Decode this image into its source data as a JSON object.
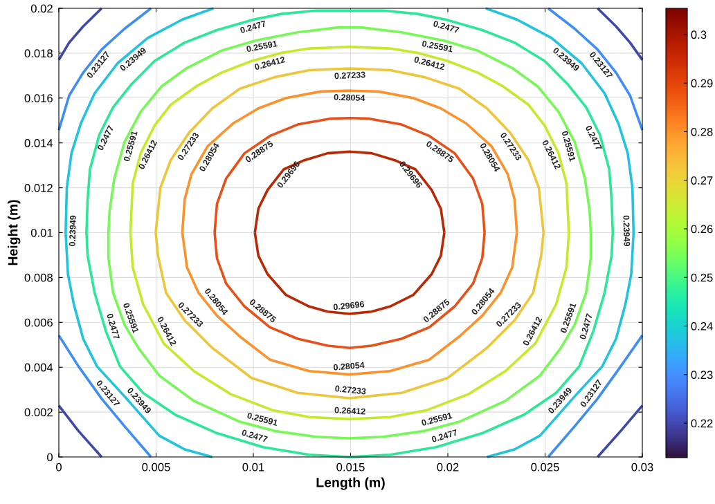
{
  "chart_data": {
    "type": "line",
    "xlabel": "Length (m)",
    "ylabel": "Height (m)",
    "xlim": [
      0,
      0.03
    ],
    "xticks": [
      0,
      0.005,
      0.01,
      0.015,
      0.02,
      0.025,
      0.03
    ],
    "ylim": [
      0,
      0.02
    ],
    "yticks": [
      0,
      0.002,
      0.004,
      0.006,
      0.008,
      0.01,
      0.012,
      0.014,
      0.016,
      0.018,
      0.02
    ],
    "grid": true,
    "legend": false,
    "marker": "none",
    "line_style": "solid",
    "clim": [
      0.2129,
      0.3054
    ],
    "cticks": [
      0.22,
      0.23,
      0.24,
      0.25,
      0.26,
      0.27,
      0.28,
      0.29,
      0.3
    ],
    "series": [
      {
        "name": "0.29696",
        "color": "#b82a06",
        "x": [
          0.01008,
          0.01026,
          0.01073,
          0.01156,
          0.01263,
          0.01382,
          0.01495,
          0.01608,
          0.01727,
          0.01834,
          0.01917,
          0.01964,
          0.01982,
          null,
          0.01008,
          0.01026,
          0.01073,
          0.01168,
          0.01287,
          0.01382,
          0.01495,
          0.01608,
          0.01703,
          0.01822,
          0.01917,
          0.01964,
          0.01982
        ],
        "values": [
          0.01,
          0.01107,
          0.0119,
          0.01282,
          0.01323,
          0.01354,
          0.01361,
          0.01354,
          0.01323,
          0.01282,
          0.0119,
          0.01107,
          0.01,
          null,
          0.01,
          0.00897,
          0.00815,
          0.00722,
          0.00671,
          0.00648,
          0.00638,
          0.00648,
          0.00671,
          0.00722,
          0.00815,
          0.00897,
          0.01
        ]
      },
      {
        "name": "0.28875",
        "color": "#e8501a",
        "x": [
          0.00801,
          0.00813,
          0.0086,
          0.00955,
          0.01085,
          0.01228,
          0.01394,
          0.01495,
          0.01596,
          0.01762,
          0.01905,
          0.02035,
          0.0213,
          0.02177,
          0.02189,
          null,
          0.00801,
          0.00813,
          0.0086,
          0.00955,
          0.01085,
          0.01228,
          0.01382,
          0.01495,
          0.01608,
          0.01762,
          0.01905,
          0.02035,
          0.0213,
          0.02177,
          0.02189
        ],
        "values": [
          0.01,
          0.01128,
          0.01241,
          0.01354,
          0.01431,
          0.01482,
          0.01508,
          0.01511,
          0.01508,
          0.01482,
          0.01431,
          0.01354,
          0.01241,
          0.01128,
          0.01,
          null,
          0.01,
          0.00886,
          0.00773,
          0.00671,
          0.00578,
          0.00527,
          0.00496,
          0.00486,
          0.00496,
          0.00527,
          0.00578,
          0.00671,
          0.00773,
          0.00886,
          0.01
        ]
      },
      {
        "name": "0.28054",
        "color": "#fb922c",
        "x": [
          0.00635,
          0.00647,
          0.00682,
          0.00765,
          0.00896,
          0.01026,
          0.01168,
          0.01346,
          0.01495,
          0.01644,
          0.01822,
          0.01964,
          0.02094,
          0.02225,
          0.02308,
          0.02343,
          0.02355,
          null,
          0.00635,
          0.00659,
          0.00718,
          0.00813,
          0.00931,
          0.01085,
          0.01287,
          0.01495,
          0.01703,
          0.01905,
          0.02059,
          0.02177,
          0.02272,
          0.02331,
          0.02355
        ],
        "values": [
          0.01,
          0.01148,
          0.01261,
          0.01385,
          0.01487,
          0.01554,
          0.016,
          0.01629,
          0.01633,
          0.01629,
          0.016,
          0.01554,
          0.01487,
          0.01385,
          0.01261,
          0.01148,
          0.01,
          null,
          0.01,
          0.00845,
          0.00732,
          0.0063,
          0.00537,
          0.00434,
          0.00383,
          0.00368,
          0.00383,
          0.00434,
          0.00537,
          0.0063,
          0.00732,
          0.00845,
          0.01
        ]
      },
      {
        "name": "0.27233",
        "color": "#eec63c",
        "x": [
          0.00498,
          0.00522,
          0.00575,
          0.0067,
          0.00789,
          0.00931,
          0.01109,
          0.01287,
          0.01495,
          0.01703,
          0.01881,
          0.02059,
          0.02201,
          0.0232,
          0.02415,
          0.02468,
          0.02492,
          null,
          0.00498,
          0.0051,
          0.00551,
          0.00647,
          0.00789,
          0.00991,
          0.01228,
          0.01495,
          0.01762,
          0.01999,
          0.02201,
          0.02343,
          0.02439,
          0.0248,
          0.02492
        ],
        "values": [
          0.01,
          0.012,
          0.01323,
          0.01446,
          0.01554,
          0.01642,
          0.01693,
          0.01724,
          0.01732,
          0.01724,
          0.01693,
          0.01642,
          0.01554,
          0.01446,
          0.01323,
          0.012,
          0.01,
          null,
          0.01,
          0.00897,
          0.00732,
          0.00609,
          0.00486,
          0.00352,
          0.00286,
          0.00262,
          0.00286,
          0.00352,
          0.00486,
          0.00609,
          0.00732,
          0.00897,
          0.01
        ]
      },
      {
        "name": "0.26412",
        "color": "#c4ea2c",
        "x": [
          0.00368,
          0.0038,
          0.00421,
          0.00492,
          0.00575,
          0.00706,
          0.00836,
          0.00991,
          0.01145,
          0.01287,
          0.01495,
          0.01703,
          0.01845,
          0.01999,
          0.02154,
          0.02284,
          0.02415,
          0.02498,
          0.02569,
          0.0261,
          0.02622,
          null,
          0.00368,
          0.0038,
          0.00433,
          0.0054,
          0.00694,
          0.00884,
          0.01097,
          0.01287,
          0.01495,
          0.01703,
          0.01893,
          0.02106,
          0.02296,
          0.0245,
          0.02557,
          0.0261,
          0.02622
        ],
        "values": [
          0.01,
          0.0122,
          0.01354,
          0.01477,
          0.0157,
          0.01652,
          0.01713,
          0.01765,
          0.01801,
          0.01821,
          0.01828,
          0.01821,
          0.01801,
          0.01765,
          0.01713,
          0.01652,
          0.0157,
          0.01477,
          0.01354,
          0.0122,
          0.01,
          null,
          0.01,
          0.00845,
          0.00681,
          0.00506,
          0.00383,
          0.0028,
          0.00209,
          0.00178,
          0.00169,
          0.00178,
          0.00209,
          0.0028,
          0.00383,
          0.00506,
          0.00681,
          0.00845,
          0.01
        ]
      },
      {
        "name": "0.25591",
        "color": "#76f856",
        "x": [
          0.00255,
          0.00261,
          0.00285,
          0.00338,
          0.00421,
          0.00528,
          0.00659,
          0.00836,
          0.01014,
          0.01228,
          0.01429,
          0.01495,
          0.01561,
          0.01762,
          0.01976,
          0.02154,
          0.02331,
          0.02462,
          0.02569,
          0.02652,
          0.02705,
          0.02729,
          0.02735,
          null,
          0.00255,
          0.00255,
          0.00279,
          0.00338,
          0.00409,
          0.00516,
          0.00694,
          0.00931,
          0.01109,
          0.01322,
          0.01495,
          0.01668,
          0.01881,
          0.02059,
          0.02296,
          0.02474,
          0.02581,
          0.02652,
          0.02711,
          0.02735,
          0.02735
        ],
        "values": [
          0.01,
          0.01097,
          0.01241,
          0.01405,
          0.01539,
          0.01652,
          0.01734,
          0.01811,
          0.01857,
          0.01893,
          0.01914,
          0.01914,
          0.01914,
          0.01893,
          0.01857,
          0.01811,
          0.01734,
          0.01652,
          0.01539,
          0.01405,
          0.01241,
          0.01097,
          0.01,
          null,
          0.01,
          0.00886,
          0.00732,
          0.00589,
          0.00486,
          0.00363,
          0.0025,
          0.00157,
          0.00116,
          0.0009,
          0.00083,
          0.0009,
          0.00116,
          0.00157,
          0.0025,
          0.00363,
          0.00486,
          0.00589,
          0.00732,
          0.00886,
          0.01
        ]
      },
      {
        "name": "0.2477",
        "color": "#2ce896",
        "x": [
          0.00142,
          0.00148,
          0.0016,
          0.00208,
          0.00279,
          0.00374,
          0.00492,
          0.00647,
          0.00813,
          0.01002,
          0.01145,
          0.01322,
          0.01495,
          0.01668,
          0.01845,
          0.01988,
          0.02177,
          0.02343,
          0.02498,
          0.02616,
          0.02711,
          0.02782,
          0.0283,
          0.02842,
          0.02848,
          null,
          0.00142,
          0.00148,
          0.00184,
          0.00243,
          0.00314,
          0.00433,
          0.00599,
          0.00813,
          0.0105,
          0.01287,
          0.01495,
          0.01703,
          0.0194,
          0.02177,
          0.02391,
          0.02557,
          0.02676,
          0.02747,
          0.02806,
          0.02842,
          0.02848
        ],
        "values": [
          0.01,
          0.01148,
          0.01282,
          0.01436,
          0.01559,
          0.01662,
          0.01765,
          0.01847,
          0.01903,
          0.0195,
          0.01975,
          0.0199,
          0.0199,
          0.0199,
          0.01975,
          0.0195,
          0.01903,
          0.01847,
          0.01765,
          0.01662,
          0.01559,
          0.01436,
          0.01282,
          0.01148,
          0.01,
          null,
          0.01,
          0.00897,
          0.00732,
          0.00558,
          0.00404,
          0.00286,
          0.00188,
          0.00106,
          0.00044,
          0.0001,
          0.0,
          0.0001,
          0.00044,
          0.00106,
          0.00188,
          0.00286,
          0.00404,
          0.00558,
          0.00732,
          0.00897,
          0.01
        ]
      },
      {
        "name": "0.23949",
        "color": "#22c3dd",
        "x": [
          0.00795,
          0.00635,
          0.00457,
          0.00302,
          0.00184,
          0.00113,
          0.00065,
          0.00041,
          0.00035,
          0.00047,
          0.00077,
          0.00125,
          0.00196,
          0.00338,
          0.00516,
          0.00647,
          0.00789,
          null,
          0.02195,
          0.02355,
          0.02533,
          0.02688,
          0.02806,
          0.02877,
          0.02925,
          0.02949,
          0.02955,
          0.02943,
          0.02913,
          0.02865,
          0.02794,
          0.02652,
          0.02474,
          0.02343,
          0.02201
        ],
        "values": [
          0.02,
          0.0195,
          0.01868,
          0.01755,
          0.01621,
          0.01487,
          0.01354,
          0.012,
          0.01,
          0.00815,
          0.00681,
          0.00527,
          0.00404,
          0.0027,
          0.00095,
          0.00034,
          0.0,
          null,
          0.02,
          0.0195,
          0.01868,
          0.01755,
          0.01621,
          0.01487,
          0.01354,
          0.012,
          0.01,
          0.00815,
          0.00681,
          0.00527,
          0.00404,
          0.0027,
          0.00095,
          0.00034,
          0.0
        ]
      },
      {
        "name": "0.23127",
        "color": "#3e8ef5",
        "x": [
          0.00474,
          0.00338,
          0.0022,
          0.00125,
          0.00053,
          0.0,
          null,
          0.0,
          0.00101,
          0.0022,
          0.00338,
          0.00474,
          null,
          0.02516,
          0.02652,
          0.0277,
          0.02865,
          0.02937,
          0.03,
          null,
          0.03,
          0.02889,
          0.0277,
          0.02652,
          0.02516
        ],
        "values": [
          0.02,
          0.01909,
          0.01816,
          0.01713,
          0.01611,
          0.01457,
          null,
          0.00542,
          0.00404,
          0.0026,
          0.00137,
          0.0,
          null,
          0.02,
          0.01909,
          0.01816,
          0.01713,
          0.01611,
          0.01457,
          null,
          0.00542,
          0.00404,
          0.0026,
          0.00137,
          0.0
        ]
      },
      {
        "color": "#3f4aa8",
        "x": [
          0.0022,
          0.00125,
          0.00053,
          0.0,
          null,
          0.0,
          0.00101,
          0.0022,
          null,
          0.0277,
          0.02865,
          0.02937,
          0.03,
          null,
          0.03,
          0.02889,
          0.0277
        ],
        "values": [
          0.02,
          0.01919,
          0.01847,
          0.0177,
          null,
          0.00229,
          0.00116,
          0.0,
          null,
          0.02,
          0.01919,
          0.01847,
          0.0177,
          null,
          0.00229,
          0.00116,
          0.0
        ]
      }
    ]
  }
}
